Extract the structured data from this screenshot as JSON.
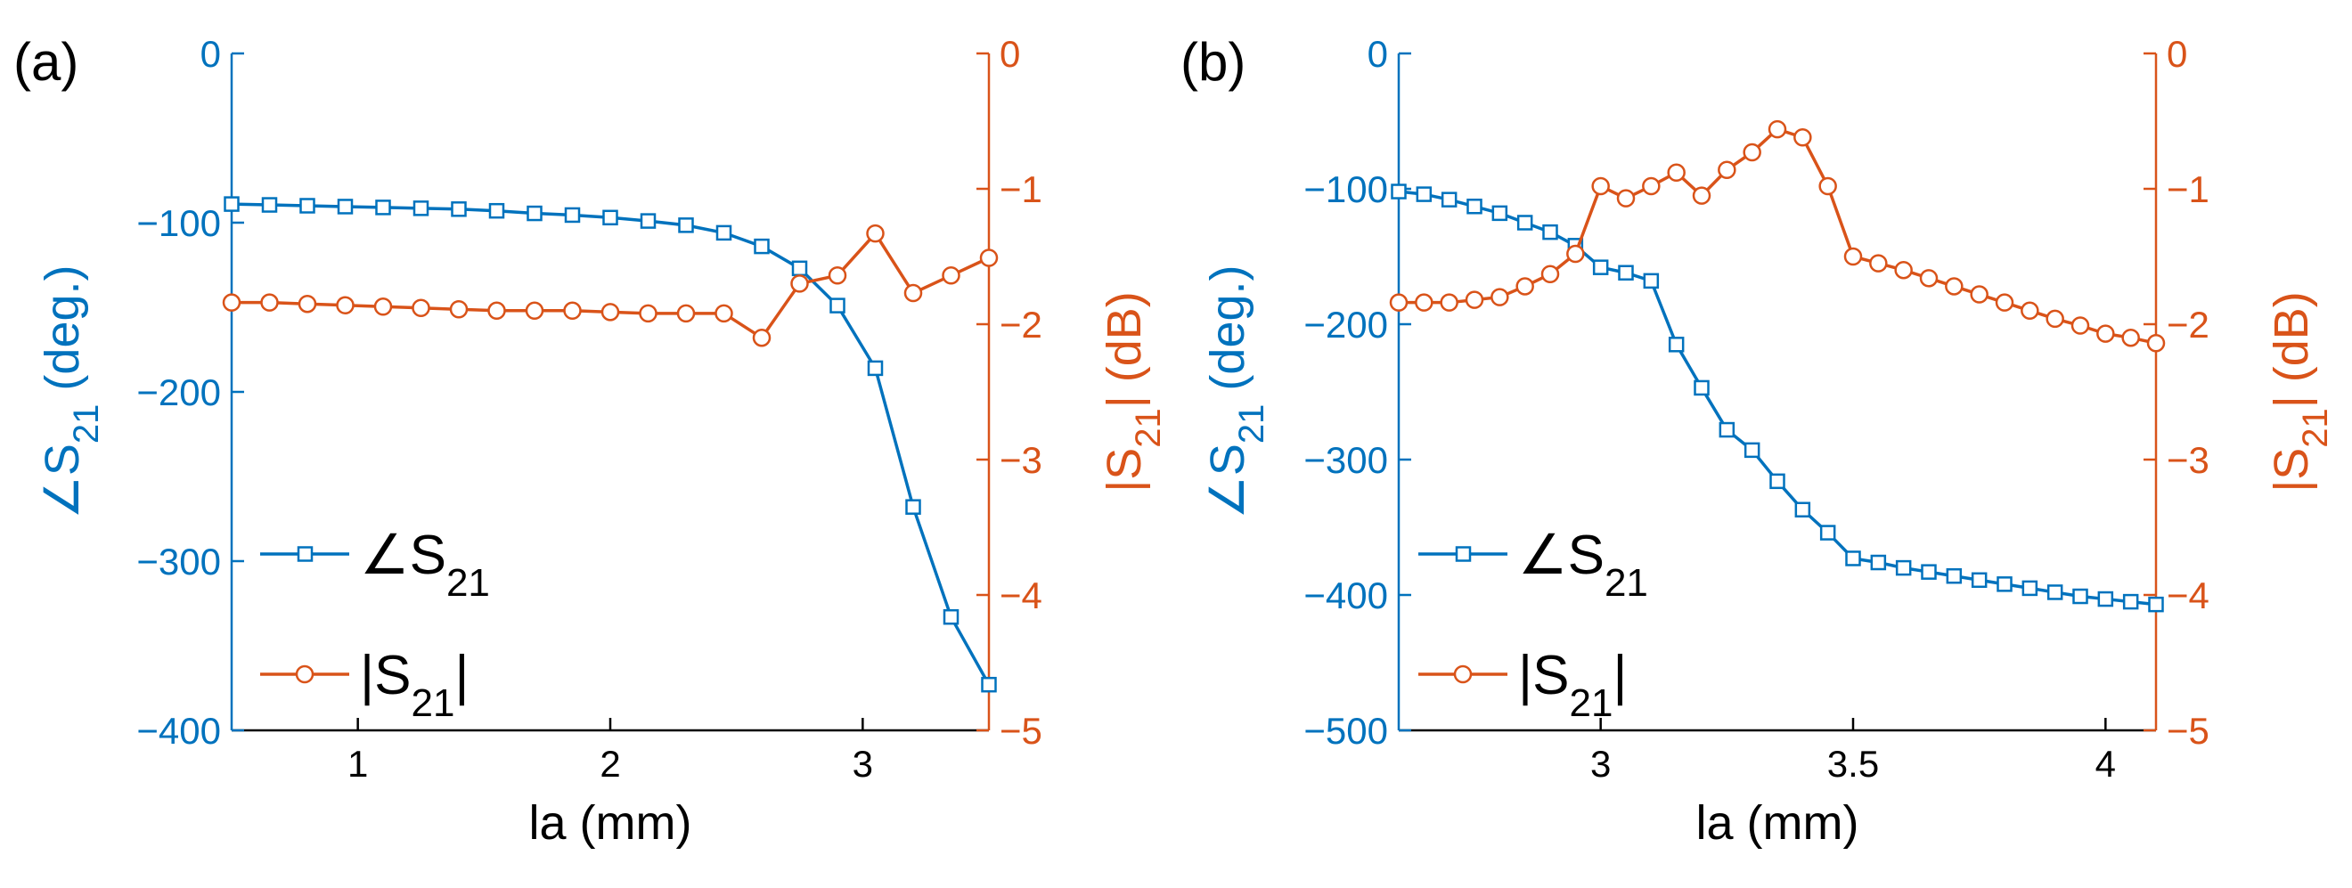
{
  "colors": {
    "phase": "#0072BD",
    "mag": "#D95319",
    "axis": "#000000",
    "legend_text": "#000000"
  },
  "chart_data": [
    {
      "type": "line",
      "panel_label": "(a)",
      "xlabel": "la (mm)",
      "ylabel_left": {
        "base": "∠S",
        "sub": "21",
        "rest": " (deg.)"
      },
      "ylabel_right": {
        "base": "|S",
        "sub": "21",
        "rest": "| (dB)"
      },
      "xlim": [
        0.5,
        3.5
      ],
      "xticks": [
        1,
        2,
        3
      ],
      "xtick_labels": [
        "1",
        "2",
        "3"
      ],
      "ylim_left": [
        -400,
        0
      ],
      "yticks_left": [
        0,
        -100,
        -200,
        -300,
        -400
      ],
      "ytick_labels_left": [
        "0",
        "−100",
        "−200",
        "−300",
        "−400"
      ],
      "ylim_right": [
        -5,
        0
      ],
      "yticks_right": [
        0,
        -1,
        -2,
        -3,
        -4,
        -5
      ],
      "ytick_labels_right": [
        "0",
        "−1",
        "−2",
        "−3",
        "−4",
        "−5"
      ],
      "legend": [
        {
          "base": "∠S",
          "sub": "21",
          "rest": "",
          "marker": "square",
          "series": "phase"
        },
        {
          "base": "|S",
          "sub": "21",
          "rest": "|",
          "marker": "circle",
          "series": "mag"
        }
      ],
      "series": [
        {
          "name": "∠S21",
          "axis": "left",
          "marker": "square",
          "color_key": "phase",
          "x": [
            0.5,
            0.65,
            0.8,
            0.95,
            1.1,
            1.25,
            1.4,
            1.55,
            1.7,
            1.85,
            2.0,
            2.15,
            2.3,
            2.45,
            2.6,
            2.75,
            2.9,
            3.05,
            3.2,
            3.35,
            3.5
          ],
          "y": [
            -89,
            -89.5,
            -90,
            -90.5,
            -91,
            -91.5,
            -92,
            -93,
            -94.5,
            -95.5,
            -97,
            -99,
            -101.5,
            -106,
            -114,
            -127,
            -149,
            -186,
            -268,
            -333,
            -373
          ]
        },
        {
          "name": "|S21|",
          "axis": "right",
          "marker": "circle",
          "color_key": "mag",
          "x": [
            0.5,
            0.65,
            0.8,
            0.95,
            1.1,
            1.25,
            1.4,
            1.55,
            1.7,
            1.85,
            2.0,
            2.15,
            2.3,
            2.45,
            2.6,
            2.75,
            2.9,
            3.05,
            3.2,
            3.35,
            3.5
          ],
          "y": [
            -1.84,
            -1.84,
            -1.85,
            -1.86,
            -1.87,
            -1.88,
            -1.89,
            -1.9,
            -1.9,
            -1.9,
            -1.91,
            -1.92,
            -1.92,
            -1.92,
            -2.1,
            -1.7,
            -1.64,
            -1.33,
            -1.77,
            -1.64,
            -1.51
          ]
        }
      ]
    },
    {
      "type": "line",
      "panel_label": "(b)",
      "xlabel": "la (mm)",
      "ylabel_left": {
        "base": "∠S",
        "sub": "21",
        "rest": " (deg.)"
      },
      "ylabel_right": {
        "base": "|S",
        "sub": "21",
        "rest": "| (dB)"
      },
      "xlim": [
        2.6,
        4.1
      ],
      "xticks": [
        3,
        3.5,
        4
      ],
      "xtick_labels": [
        "3",
        "3.5",
        "4"
      ],
      "ylim_left": [
        -500,
        0
      ],
      "yticks_left": [
        0,
        -100,
        -200,
        -300,
        -400,
        -500
      ],
      "ytick_labels_left": [
        "0",
        "−100",
        "−200",
        "−300",
        "−400",
        "−500"
      ],
      "ylim_right": [
        -5,
        0
      ],
      "yticks_right": [
        0,
        -1,
        -2,
        -3,
        -4,
        -5
      ],
      "ytick_labels_right": [
        "0",
        "−1",
        "−2",
        "−3",
        "−4",
        "−5"
      ],
      "legend": [
        {
          "base": "∠S",
          "sub": "21",
          "rest": "",
          "marker": "square",
          "series": "phase"
        },
        {
          "base": "|S",
          "sub": "21",
          "rest": "|",
          "marker": "circle",
          "series": "mag"
        }
      ],
      "series": [
        {
          "name": "∠S21",
          "axis": "left",
          "marker": "square",
          "color_key": "phase",
          "x": [
            2.6,
            2.65,
            2.7,
            2.75,
            2.8,
            2.85,
            2.9,
            2.95,
            3.0,
            3.05,
            3.1,
            3.15,
            3.2,
            3.25,
            3.3,
            3.35,
            3.4,
            3.45,
            3.5,
            3.55,
            3.6,
            3.65,
            3.7,
            3.75,
            3.8,
            3.85,
            3.9,
            3.95,
            4.0,
            4.05,
            4.1
          ],
          "y": [
            -102,
            -104,
            -108,
            -113,
            -118,
            -125,
            -132,
            -142,
            -158,
            -162,
            -168,
            -215,
            -247,
            -278,
            -293,
            -316,
            -337,
            -354,
            -373,
            -376,
            -380,
            -383,
            -386,
            -389,
            -392,
            -395,
            -398,
            -401,
            -403,
            -405,
            -407
          ]
        },
        {
          "name": "|S21|",
          "axis": "right",
          "marker": "circle",
          "color_key": "mag",
          "x": [
            2.6,
            2.65,
            2.7,
            2.75,
            2.8,
            2.85,
            2.9,
            2.95,
            3.0,
            3.05,
            3.1,
            3.15,
            3.2,
            3.25,
            3.3,
            3.35,
            3.4,
            3.45,
            3.5,
            3.55,
            3.6,
            3.65,
            3.7,
            3.75,
            3.8,
            3.85,
            3.9,
            3.95,
            4.0,
            4.05,
            4.1
          ],
          "y": [
            -1.84,
            -1.84,
            -1.84,
            -1.82,
            -1.8,
            -1.72,
            -1.63,
            -1.48,
            -0.98,
            -1.07,
            -0.98,
            -0.88,
            -1.05,
            -0.86,
            -0.73,
            -0.56,
            -0.62,
            -0.98,
            -1.5,
            -1.55,
            -1.6,
            -1.66,
            -1.72,
            -1.78,
            -1.84,
            -1.9,
            -1.96,
            -2.01,
            -2.07,
            -2.1,
            -2.14
          ]
        }
      ]
    }
  ]
}
